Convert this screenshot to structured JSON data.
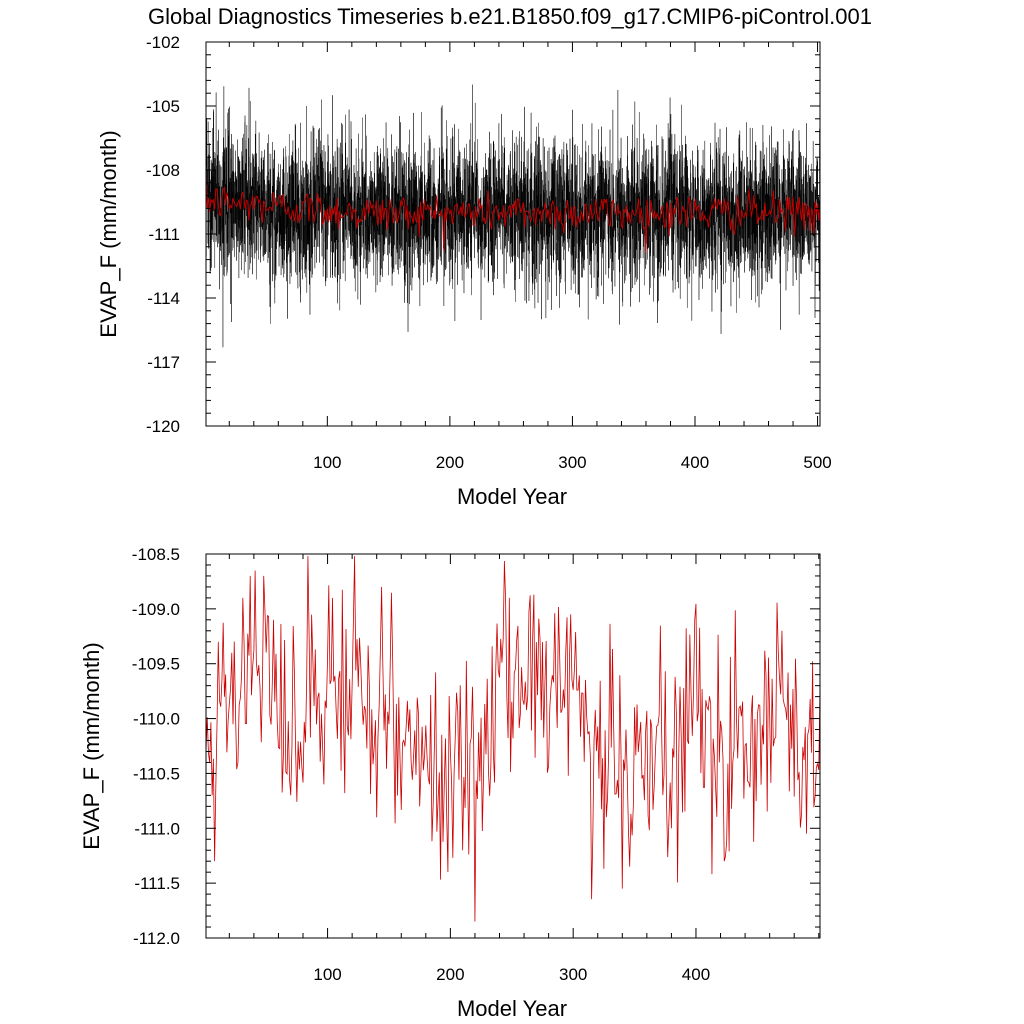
{
  "page": {
    "title": "Global Diagnostics Timeseries b.e21.B1850.f09_g17.CMIP6-piControl.001"
  },
  "colors": {
    "monthly": "#000000",
    "annual": "#cc0000",
    "axis": "#000000"
  },
  "chart_data": [
    {
      "type": "line",
      "xlabel": "Model Year",
      "ylabel": "EVAP_F (mm/month)",
      "xlim": [
        1,
        502
      ],
      "ylim": [
        -120,
        -102
      ],
      "xticks": [
        100,
        200,
        300,
        400,
        500
      ],
      "yticks": [
        -120,
        -117,
        -114,
        -111,
        -108,
        -105,
        -102
      ],
      "ytick_labels": [
        "-120",
        "-117",
        "-114",
        "-111",
        "-108",
        "-105",
        "-102"
      ],
      "grid": false,
      "legend": "none",
      "series": [
        {
          "kind": "monthly",
          "stat_mean": -110.0,
          "stat_sd": 1.6,
          "x_start": 1,
          "x_end": 502,
          "months": 6024
        },
        {
          "kind": "annual",
          "stat_mean": -110.0,
          "stat_sd": 0.45,
          "x_start": 1,
          "x_end": 502
        }
      ]
    },
    {
      "type": "line",
      "xlabel": "Model Year",
      "ylabel": "EVAP_F (mm/month)",
      "xlim": [
        1,
        501
      ],
      "ylim": [
        -112,
        -108.5
      ],
      "xticks": [
        100,
        200,
        300,
        400
      ],
      "yticks": [
        -112,
        -111.5,
        -111,
        -110.5,
        -110,
        -109.5,
        -109,
        -108.5
      ],
      "ytick_labels": [
        "-112.0",
        "-111.5",
        "-111.0",
        "-110.5",
        "-110.0",
        "-109.5",
        "-109.0",
        "-108.5"
      ],
      "grid": false,
      "legend": "none",
      "series": [
        {
          "kind": "annual",
          "x_start": 1,
          "x_end": 501,
          "anchors": [
            {
              "x": 1,
              "y": -110.3
            },
            {
              "x": 6,
              "y": -110.7
            },
            {
              "x": 8,
              "y": -111.3
            },
            {
              "x": 11,
              "y": -109.3
            },
            {
              "x": 22,
              "y": -109.4
            },
            {
              "x": 27,
              "y": -110.4
            },
            {
              "x": 31,
              "y": -108.9
            },
            {
              "x": 37,
              "y": -108.7
            },
            {
              "x": 41,
              "y": -108.65
            },
            {
              "x": 48,
              "y": -108.7
            },
            {
              "x": 56,
              "y": -109.1
            },
            {
              "x": 70,
              "y": -110.7
            },
            {
              "x": 84,
              "y": -108.5
            },
            {
              "x": 97,
              "y": -110.6
            },
            {
              "x": 104,
              "y": -108.9
            },
            {
              "x": 122,
              "y": -108.5
            },
            {
              "x": 140,
              "y": -110.9
            },
            {
              "x": 144,
              "y": -108.8
            },
            {
              "x": 175,
              "y": -110.8
            },
            {
              "x": 210,
              "y": -111.2
            },
            {
              "x": 220,
              "y": -111.85
            },
            {
              "x": 248,
              "y": -108.9
            },
            {
              "x": 298,
              "y": -109.05
            },
            {
              "x": 340,
              "y": -111.55
            },
            {
              "x": 380,
              "y": -111.0
            },
            {
              "x": 399,
              "y": -109.1
            },
            {
              "x": 423,
              "y": -111.3
            },
            {
              "x": 470,
              "y": -109.2
            },
            {
              "x": 490,
              "y": -111.05
            },
            {
              "x": 501,
              "y": -109.7
            }
          ],
          "stat_mean": -110.1,
          "stat_sd": 0.45
        }
      ]
    }
  ]
}
